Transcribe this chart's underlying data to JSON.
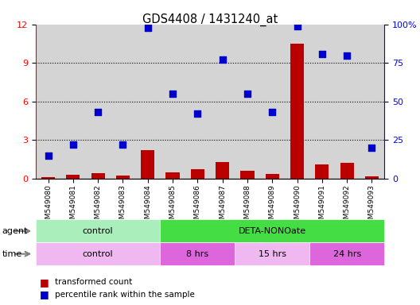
{
  "title": "GDS4408 / 1431240_at",
  "samples": [
    "GSM549080",
    "GSM549081",
    "GSM549082",
    "GSM549083",
    "GSM549084",
    "GSM549085",
    "GSM549086",
    "GSM549087",
    "GSM549088",
    "GSM549089",
    "GSM549090",
    "GSM549091",
    "GSM549092",
    "GSM549093"
  ],
  "bar_values": [
    0.12,
    0.3,
    0.38,
    0.22,
    2.2,
    0.5,
    0.75,
    1.3,
    0.6,
    0.35,
    10.5,
    1.1,
    1.2,
    0.15
  ],
  "dot_values": [
    15,
    22,
    43,
    22,
    98,
    55,
    42,
    77,
    55,
    43,
    99,
    81,
    80,
    20
  ],
  "bar_color": "#bb0000",
  "dot_color": "#0000cc",
  "ylim_left": [
    0,
    12
  ],
  "ylim_right": [
    0,
    100
  ],
  "yticks_left": [
    0,
    3,
    6,
    9,
    12
  ],
  "yticks_right": [
    0,
    25,
    50,
    75,
    100
  ],
  "ytick_labels_right": [
    "0",
    "25",
    "50",
    "75",
    "100%"
  ],
  "agent_groups": [
    {
      "label": "control",
      "start": 0,
      "end": 5,
      "color": "#aaeebb"
    },
    {
      "label": "DETA-NONOate",
      "start": 5,
      "end": 14,
      "color": "#44dd44"
    }
  ],
  "time_groups": [
    {
      "label": "control",
      "start": 0,
      "end": 5,
      "color": "#f0b8f0"
    },
    {
      "label": "8 hrs",
      "start": 5,
      "end": 8,
      "color": "#dd66dd"
    },
    {
      "label": "15 hrs",
      "start": 8,
      "end": 11,
      "color": "#f0b8f0"
    },
    {
      "label": "24 hrs",
      "start": 11,
      "end": 14,
      "color": "#dd66dd"
    }
  ],
  "legend_bar_label": "transformed count",
  "legend_dot_label": "percentile rank within the sample",
  "agent_label": "agent",
  "time_label": "time",
  "background_color": "#ffffff",
  "col_bg_color": "#d4d4d4",
  "bar_width": 0.55,
  "dot_size": 35
}
